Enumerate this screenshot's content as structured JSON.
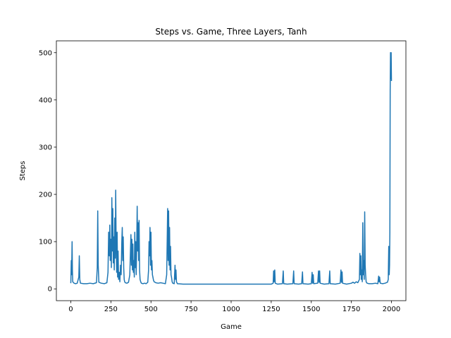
{
  "chart_data": {
    "type": "line",
    "title": "Steps vs. Game, Three Layers, Tanh",
    "xlabel": "Game",
    "ylabel": "Steps",
    "xlim": [
      -90,
      2090
    ],
    "ylim": [
      -25,
      525
    ],
    "x_ticks": [
      0,
      250,
      500,
      750,
      1000,
      1250,
      1500,
      1750,
      2000
    ],
    "y_ticks": [
      0,
      100,
      200,
      300,
      400,
      500
    ],
    "grid": false,
    "colors": {
      "line": "#1f77b4",
      "axes": "#000000",
      "background": "#ffffff"
    },
    "series": [
      {
        "points": [
          [
            0,
            12
          ],
          [
            3,
            60
          ],
          [
            5,
            30
          ],
          [
            8,
            100
          ],
          [
            10,
            40
          ],
          [
            12,
            15
          ],
          [
            20,
            12
          ],
          [
            30,
            11
          ],
          [
            40,
            12
          ],
          [
            50,
            25
          ],
          [
            53,
            70
          ],
          [
            56,
            20
          ],
          [
            60,
            12
          ],
          [
            80,
            11
          ],
          [
            100,
            11
          ],
          [
            120,
            12
          ],
          [
            140,
            11
          ],
          [
            160,
            13
          ],
          [
            165,
            45
          ],
          [
            168,
            165
          ],
          [
            171,
            50
          ],
          [
            175,
            14
          ],
          [
            190,
            12
          ],
          [
            210,
            11
          ],
          [
            225,
            13
          ],
          [
            232,
            35
          ],
          [
            236,
            120
          ],
          [
            240,
            70
          ],
          [
            243,
            135
          ],
          [
            246,
            60
          ],
          [
            250,
            105
          ],
          [
            253,
            45
          ],
          [
            256,
            193
          ],
          [
            259,
            80
          ],
          [
            262,
            170
          ],
          [
            265,
            55
          ],
          [
            268,
            110
          ],
          [
            271,
            40
          ],
          [
            274,
            150
          ],
          [
            277,
            65
          ],
          [
            280,
            209
          ],
          [
            283,
            90
          ],
          [
            286,
            35
          ],
          [
            289,
            120
          ],
          [
            292,
            25
          ],
          [
            295,
            80
          ],
          [
            298,
            20
          ],
          [
            302,
            35
          ],
          [
            306,
            15
          ],
          [
            310,
            50
          ],
          [
            314,
            30
          ],
          [
            318,
            100
          ],
          [
            321,
            130
          ],
          [
            324,
            60
          ],
          [
            327,
            110
          ],
          [
            330,
            45
          ],
          [
            333,
            20
          ],
          [
            336,
            15
          ],
          [
            340,
            13
          ],
          [
            350,
            12
          ],
          [
            360,
            14
          ],
          [
            368,
            30
          ],
          [
            372,
            80
          ],
          [
            375,
            115
          ],
          [
            378,
            50
          ],
          [
            381,
            105
          ],
          [
            384,
            40
          ],
          [
            387,
            95
          ],
          [
            390,
            35
          ],
          [
            393,
            60
          ],
          [
            396,
            25
          ],
          [
            399,
            120
          ],
          [
            402,
            45
          ],
          [
            405,
            100
          ],
          [
            408,
            30
          ],
          [
            411,
            90
          ],
          [
            414,
            175
          ],
          [
            417,
            80
          ],
          [
            420,
            140
          ],
          [
            423,
            60
          ],
          [
            426,
            145
          ],
          [
            429,
            40
          ],
          [
            432,
            20
          ],
          [
            436,
            15
          ],
          [
            440,
            12
          ],
          [
            450,
            11
          ],
          [
            460,
            12
          ],
          [
            470,
            11
          ],
          [
            480,
            14
          ],
          [
            485,
            40
          ],
          [
            488,
            100
          ],
          [
            491,
            70
          ],
          [
            494,
            130
          ],
          [
            497,
            50
          ],
          [
            500,
            120
          ],
          [
            503,
            40
          ],
          [
            506,
            60
          ],
          [
            509,
            30
          ],
          [
            512,
            25
          ],
          [
            516,
            18
          ],
          [
            520,
            15
          ],
          [
            530,
            13
          ],
          [
            545,
            12
          ],
          [
            560,
            13
          ],
          [
            575,
            12
          ],
          [
            590,
            11
          ],
          [
            598,
            30
          ],
          [
            601,
            100
          ],
          [
            604,
            170
          ],
          [
            607,
            60
          ],
          [
            610,
            165
          ],
          [
            613,
            50
          ],
          [
            616,
            130
          ],
          [
            619,
            40
          ],
          [
            622,
            90
          ],
          [
            625,
            30
          ],
          [
            628,
            25
          ],
          [
            632,
            15
          ],
          [
            636,
            12
          ],
          [
            645,
            11
          ],
          [
            650,
            50
          ],
          [
            653,
            20
          ],
          [
            656,
            40
          ],
          [
            659,
            15
          ],
          [
            665,
            11
          ],
          [
            700,
            10
          ],
          [
            750,
            10
          ],
          [
            800,
            10
          ],
          [
            850,
            10
          ],
          [
            900,
            10
          ],
          [
            950,
            10
          ],
          [
            1000,
            10
          ],
          [
            1050,
            10
          ],
          [
            1100,
            10
          ],
          [
            1150,
            10
          ],
          [
            1200,
            10
          ],
          [
            1250,
            10
          ],
          [
            1262,
            12
          ],
          [
            1265,
            38
          ],
          [
            1268,
            15
          ],
          [
            1272,
            40
          ],
          [
            1275,
            12
          ],
          [
            1290,
            10
          ],
          [
            1320,
            11
          ],
          [
            1325,
            38
          ],
          [
            1328,
            11
          ],
          [
            1350,
            10
          ],
          [
            1385,
            11
          ],
          [
            1390,
            38
          ],
          [
            1393,
            11
          ],
          [
            1420,
            10
          ],
          [
            1440,
            11
          ],
          [
            1445,
            36
          ],
          [
            1448,
            11
          ],
          [
            1480,
            10
          ],
          [
            1500,
            11
          ],
          [
            1505,
            35
          ],
          [
            1508,
            12
          ],
          [
            1512,
            30
          ],
          [
            1515,
            11
          ],
          [
            1540,
            12
          ],
          [
            1545,
            38
          ],
          [
            1548,
            14
          ],
          [
            1552,
            38
          ],
          [
            1555,
            12
          ],
          [
            1580,
            10
          ],
          [
            1610,
            11
          ],
          [
            1615,
            38
          ],
          [
            1618,
            11
          ],
          [
            1650,
            10
          ],
          [
            1680,
            12
          ],
          [
            1685,
            40
          ],
          [
            1688,
            14
          ],
          [
            1692,
            36
          ],
          [
            1695,
            12
          ],
          [
            1720,
            10
          ],
          [
            1750,
            12
          ],
          [
            1760,
            14
          ],
          [
            1770,
            12
          ],
          [
            1780,
            15
          ],
          [
            1790,
            13
          ],
          [
            1800,
            20
          ],
          [
            1803,
            75
          ],
          [
            1806,
            30
          ],
          [
            1809,
            70
          ],
          [
            1812,
            20
          ],
          [
            1815,
            40
          ],
          [
            1818,
            15
          ],
          [
            1821,
            140
          ],
          [
            1824,
            30
          ],
          [
            1827,
            60
          ],
          [
            1830,
            20
          ],
          [
            1833,
            163
          ],
          [
            1836,
            50
          ],
          [
            1839,
            30
          ],
          [
            1842,
            15
          ],
          [
            1848,
            12
          ],
          [
            1860,
            11
          ],
          [
            1880,
            11
          ],
          [
            1900,
            12
          ],
          [
            1915,
            11
          ],
          [
            1920,
            27
          ],
          [
            1923,
            15
          ],
          [
            1926,
            25
          ],
          [
            1930,
            12
          ],
          [
            1945,
            11
          ],
          [
            1960,
            12
          ],
          [
            1975,
            14
          ],
          [
            1980,
            20
          ],
          [
            1983,
            90
          ],
          [
            1986,
            30
          ],
          [
            1988,
            50
          ],
          [
            1990,
            120
          ],
          [
            1992,
            420
          ],
          [
            1994,
            500
          ],
          [
            1996,
            445
          ],
          [
            1998,
            500
          ],
          [
            2000,
            440
          ]
        ]
      }
    ]
  }
}
